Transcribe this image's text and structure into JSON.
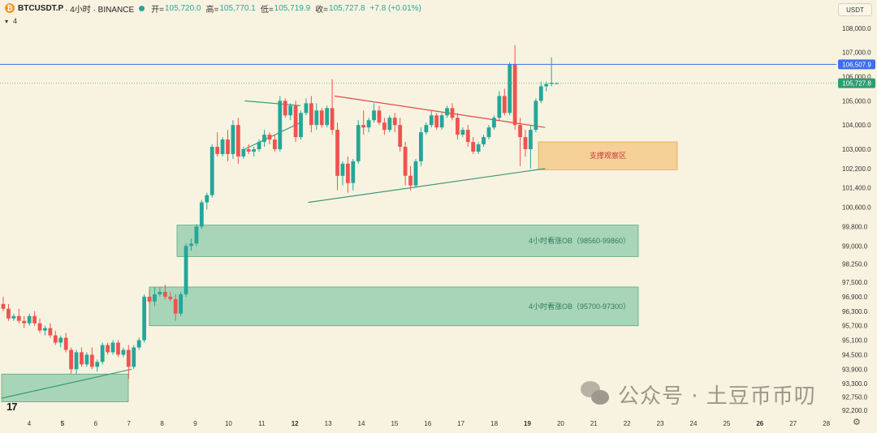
{
  "header": {
    "symbol": "BTCUSDT.P",
    "interval_exchange": "· 4小时 · BINANCE",
    "open_label": "开=",
    "open": "105,720.0",
    "high_label": "高=",
    "high": "105,770.1",
    "low_label": "低=",
    "low": "105,719.9",
    "close_label": "收=",
    "close": "105,727.8",
    "change": "+7.8 (+0.01%)",
    "indicator_count": "4",
    "currency": "USDT"
  },
  "colors": {
    "up": "#26a69a",
    "down": "#ef5350",
    "resistance_line": "#3d6df2",
    "price_line": "#4caf50",
    "ob_zone": "#86c7a6",
    "support_zone": "#f4c98a"
  },
  "icons": {
    "logo": "bitcoin-logo-icon",
    "status": "market-open-dot-icon",
    "chevron": "chevron-down-icon",
    "settings": "settings-gear-icon",
    "brand": "tradingview-logo-icon",
    "watermark": "wechat-icon"
  },
  "watermark": "公众号 · 土豆币币叨",
  "tv_logo": "17",
  "chart_data": {
    "type": "candlestick",
    "interval": "4H",
    "x_ticks": [
      "4",
      "5",
      "6",
      "7",
      "8",
      "9",
      "10",
      "11",
      "12",
      "13",
      "14",
      "15",
      "16",
      "17",
      "18",
      "19",
      "20",
      "21",
      "22",
      "23",
      "24",
      "25",
      "26",
      "27",
      "28"
    ],
    "bold_x_ticks": [
      "5",
      "12",
      "19",
      "26"
    ],
    "y_ticks": [
      "108,000.0",
      "107,000.0",
      "106,000.0",
      "105,000.0",
      "104,000.0",
      "103,000.0",
      "102,200.0",
      "101,400.0",
      "100,600.0",
      "99,800.0",
      "99,000.0",
      "98,250.0",
      "97,500.0",
      "96,900.0",
      "96,300.0",
      "95,700.0",
      "95,100.0",
      "94,500.0",
      "93,900.0",
      "93,300.0",
      "92,750.0",
      "92,200.0"
    ],
    "price_labels": [
      {
        "value": "106,507.9",
        "role": "resistance"
      },
      {
        "value": "105,727.8",
        "role": "last"
      }
    ],
    "zones": [
      {
        "label": "支撑观察区",
        "kind": "support",
        "top": 103300,
        "bottom": 102150
      },
      {
        "label": "4小时看涨OB（98560-99860）",
        "kind": "ob",
        "top": 99860,
        "bottom": 98560
      },
      {
        "label": "4小时看涨OB（95700-97300）",
        "kind": "ob",
        "top": 97300,
        "bottom": 95700
      },
      {
        "label": "",
        "kind": "ob",
        "top": 93700,
        "bottom": 92550
      }
    ],
    "candles": [
      [
        96600,
        96900,
        96300,
        96400
      ],
      [
        96400,
        96600,
        95900,
        96000
      ],
      [
        96000,
        96200,
        95900,
        96100
      ],
      [
        96100,
        96400,
        95800,
        95900
      ],
      [
        95900,
        96100,
        95600,
        95800
      ],
      [
        95800,
        96200,
        95700,
        96100
      ],
      [
        96100,
        96300,
        95700,
        95800
      ],
      [
        95800,
        96000,
        95400,
        95500
      ],
      [
        95500,
        95700,
        95300,
        95600
      ],
      [
        95600,
        95800,
        95200,
        95300
      ],
      [
        95300,
        95500,
        94900,
        95000
      ],
      [
        95000,
        95300,
        94800,
        95200
      ],
      [
        95200,
        95400,
        94600,
        94700
      ],
      [
        94700,
        94800,
        93700,
        93900
      ],
      [
        93900,
        94700,
        93700,
        94600
      ],
      [
        94600,
        94800,
        94000,
        94100
      ],
      [
        94100,
        94600,
        94000,
        94500
      ],
      [
        94500,
        94800,
        93900,
        94000
      ],
      [
        94000,
        94300,
        93800,
        94200
      ],
      [
        94200,
        95000,
        94100,
        94900
      ],
      [
        94900,
        95000,
        94500,
        94600
      ],
      [
        94600,
        95100,
        94500,
        95000
      ],
      [
        95000,
        95100,
        94400,
        94500
      ],
      [
        94500,
        94800,
        94400,
        94700
      ],
      [
        94700,
        94900,
        93500,
        94000
      ],
      [
        94000,
        94900,
        93900,
        94800
      ],
      [
        94800,
        95200,
        94700,
        95100
      ],
      [
        95100,
        97000,
        95000,
        96900
      ],
      [
        96900,
        97200,
        96600,
        96700
      ],
      [
        96700,
        97300,
        96500,
        97000
      ],
      [
        97000,
        97300,
        96900,
        97100
      ],
      [
        97100,
        97400,
        96800,
        96900
      ],
      [
        96900,
        97100,
        96700,
        96800
      ],
      [
        96800,
        97000,
        95900,
        96200
      ],
      [
        96200,
        97100,
        96100,
        97000
      ],
      [
        97000,
        99100,
        96900,
        99000
      ],
      [
        99000,
        99300,
        98800,
        99100
      ],
      [
        99100,
        99900,
        99000,
        99800
      ],
      [
        99800,
        100900,
        99700,
        100800
      ],
      [
        100800,
        101200,
        100500,
        101100
      ],
      [
        101100,
        103200,
        101000,
        103100
      ],
      [
        103100,
        103700,
        102700,
        102800
      ],
      [
        102800,
        103500,
        102700,
        103400
      ],
      [
        103400,
        103800,
        102500,
        102800
      ],
      [
        102800,
        104200,
        102600,
        104000
      ],
      [
        104000,
        104300,
        102400,
        102700
      ],
      [
        102700,
        103100,
        102600,
        103000
      ],
      [
        103000,
        103200,
        102800,
        102900
      ],
      [
        102900,
        103100,
        102700,
        103000
      ],
      [
        103000,
        103400,
        102900,
        103300
      ],
      [
        103300,
        103800,
        103100,
        103600
      ],
      [
        103600,
        103700,
        103200,
        103400
      ],
      [
        103400,
        103600,
        102900,
        103000
      ],
      [
        103000,
        105200,
        102900,
        105000
      ],
      [
        105000,
        105100,
        104300,
        104400
      ],
      [
        104400,
        104900,
        104200,
        104800
      ],
      [
        104800,
        105000,
        103300,
        103500
      ],
      [
        103500,
        104600,
        103400,
        104500
      ],
      [
        104500,
        105100,
        104400,
        104900
      ],
      [
        104900,
        105200,
        103700,
        104000
      ],
      [
        104000,
        104900,
        103800,
        104600
      ],
      [
        104600,
        104700,
        103900,
        104000
      ],
      [
        104000,
        104800,
        103900,
        104700
      ],
      [
        104700,
        105900,
        103600,
        103800
      ],
      [
        103800,
        104100,
        101300,
        101900
      ],
      [
        101900,
        102500,
        101500,
        102400
      ],
      [
        102400,
        102700,
        101200,
        101600
      ],
      [
        101600,
        102600,
        101300,
        102500
      ],
      [
        102500,
        104200,
        102400,
        104000
      ],
      [
        104000,
        104600,
        103600,
        103900
      ],
      [
        103900,
        104300,
        103700,
        104200
      ],
      [
        104200,
        104900,
        104100,
        104600
      ],
      [
        104600,
        104800,
        104000,
        104100
      ],
      [
        104100,
        104300,
        103600,
        103800
      ],
      [
        103800,
        104400,
        103700,
        104300
      ],
      [
        104300,
        104500,
        103700,
        104000
      ],
      [
        104000,
        104300,
        102900,
        103100
      ],
      [
        103100,
        103300,
        101500,
        101900
      ],
      [
        101900,
        102300,
        101300,
        101500
      ],
      [
        101500,
        102600,
        101400,
        102500
      ],
      [
        102500,
        103900,
        102300,
        103700
      ],
      [
        103700,
        104100,
        103600,
        104000
      ],
      [
        104000,
        104600,
        103900,
        104400
      ],
      [
        104400,
        104500,
        103800,
        103900
      ],
      [
        103900,
        104500,
        103800,
        104400
      ],
      [
        104400,
        104800,
        104300,
        104700
      ],
      [
        104700,
        104900,
        104200,
        104300
      ],
      [
        104300,
        104500,
        103400,
        103600
      ],
      [
        103600,
        103900,
        103500,
        103800
      ],
      [
        103800,
        104000,
        103100,
        103300
      ],
      [
        103300,
        103500,
        102800,
        102900
      ],
      [
        102900,
        103300,
        102800,
        103200
      ],
      [
        103200,
        103600,
        103100,
        103500
      ],
      [
        103500,
        104000,
        103400,
        103900
      ],
      [
        103900,
        104400,
        103800,
        104300
      ],
      [
        104300,
        105400,
        104200,
        105200
      ],
      [
        105200,
        105500,
        104400,
        104500
      ],
      [
        104500,
        106600,
        104400,
        106500
      ],
      [
        106500,
        107300,
        103800,
        104000
      ],
      [
        104000,
        104300,
        102300,
        103500
      ],
      [
        103500,
        103800,
        102700,
        103000
      ],
      [
        103000,
        104000,
        102200,
        103800
      ],
      [
        103800,
        105100,
        103700,
        105000
      ],
      [
        105000,
        105800,
        104900,
        105600
      ],
      [
        105600,
        105800,
        105400,
        105700
      ],
      [
        105700,
        106800,
        105600,
        105750
      ],
      [
        105720,
        105770,
        105719,
        105728
      ]
    ],
    "trendlines": [
      {
        "name": "",
        "color": "#3a9a7a",
        "points": [
          [
            0.5,
            92700
          ],
          [
            42.5,
            93900
          ]
        ]
      },
      {
        "name": "",
        "color": "#3a9a7a",
        "points": [
          [
            79,
            103000
          ],
          [
            97,
            104100
          ]
        ]
      },
      {
        "name": "",
        "color": "#3a9a7a",
        "points": [
          [
            79,
            105000
          ],
          [
            97,
            104800
          ]
        ]
      },
      {
        "name": "",
        "color": "#3a9a7a",
        "points": [
          [
            99.5,
            100800
          ],
          [
            176,
            102200
          ]
        ]
      },
      {
        "name": "",
        "color": "#e04848",
        "points": [
          [
            108,
            105200
          ],
          [
            176,
            103900
          ]
        ]
      }
    ],
    "x_lim": [
      0,
      270
    ],
    "y_lim": [
      92000,
      108500
    ],
    "grid": false,
    "legend": "none"
  }
}
